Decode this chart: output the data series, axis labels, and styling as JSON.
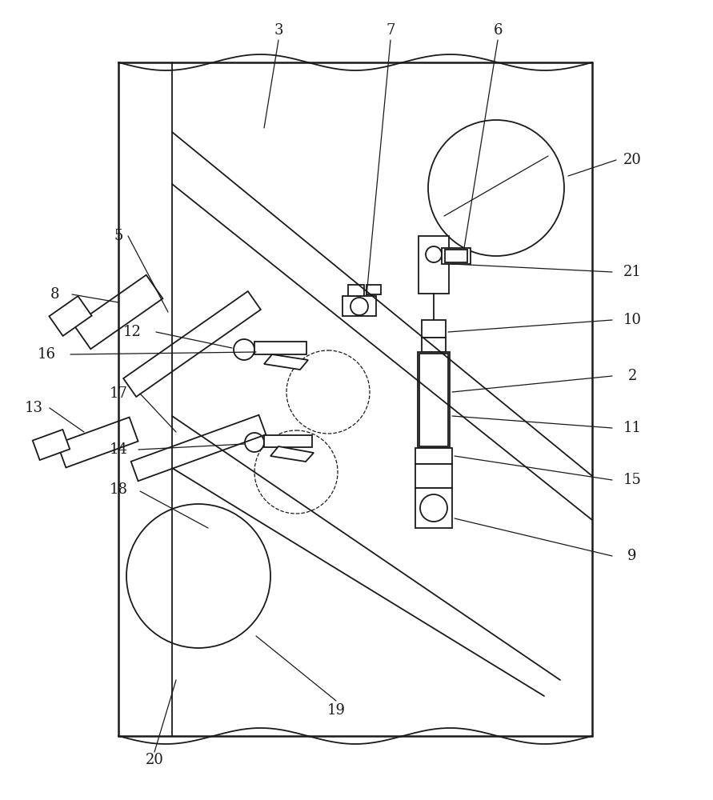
{
  "bg_color": "#ffffff",
  "line_color": "#1a1a1a",
  "fig_width": 8.91,
  "fig_height": 10.0,
  "lw_main": 1.3,
  "lw_thin": 0.9,
  "label_fontsize": 13
}
